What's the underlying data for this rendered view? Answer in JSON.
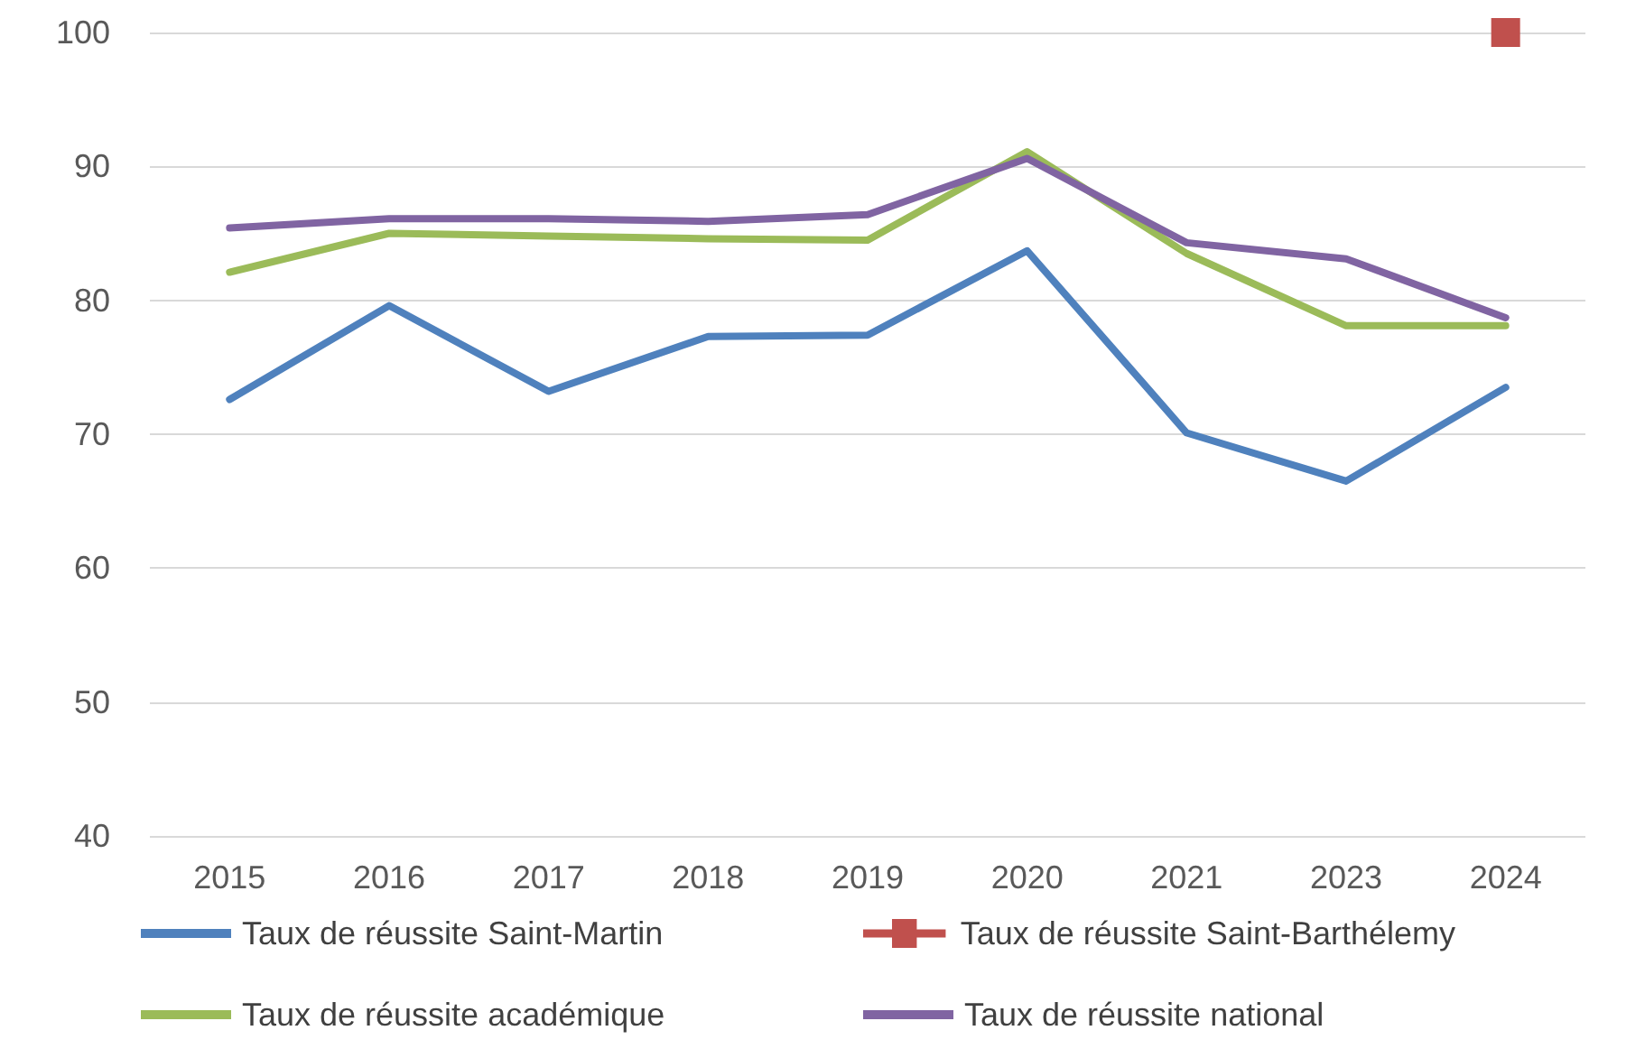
{
  "chart_data": {
    "type": "line",
    "categories": [
      "2015",
      "2016",
      "2017",
      "2018",
      "2019",
      "2020",
      "2021",
      "2023",
      "2024"
    ],
    "series": [
      {
        "name": "Taux de réussite Saint-Martin",
        "color": "#4f81bd",
        "marker": "none",
        "values": [
          72.6,
          79.6,
          73.2,
          77.3,
          77.4,
          83.7,
          70.1,
          66.5,
          73.5
        ]
      },
      {
        "name": "Taux de réussite Saint-Barthélemy",
        "color": "#c0504d",
        "marker": "square",
        "values": [
          null,
          null,
          null,
          null,
          null,
          null,
          null,
          null,
          100
        ]
      },
      {
        "name": "Taux de réussite académique",
        "color": "#9bbb59",
        "marker": "none",
        "values": [
          82.1,
          85.0,
          84.8,
          84.6,
          84.5,
          91.1,
          83.5,
          78.1,
          78.1
        ]
      },
      {
        "name": "Taux de réussite national",
        "color": "#8064a2",
        "marker": "none",
        "values": [
          85.4,
          86.1,
          86.1,
          85.9,
          86.4,
          90.6,
          84.3,
          83.1,
          78.7
        ]
      }
    ],
    "ylim": [
      40,
      100
    ],
    "yticks": [
      40,
      50,
      60,
      70,
      80,
      90,
      100
    ],
    "grid": "y",
    "legend": "bottom",
    "line_style": "solid"
  }
}
